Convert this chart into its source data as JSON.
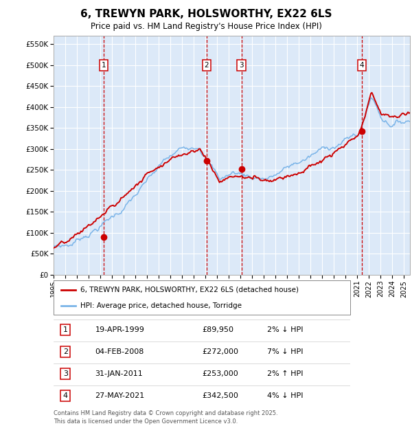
{
  "title": "6, TREWYN PARK, HOLSWORTHY, EX22 6LS",
  "subtitle": "Price paid vs. HM Land Registry's House Price Index (HPI)",
  "legend_line1": "6, TREWYN PARK, HOLSWORTHY, EX22 6LS (detached house)",
  "legend_line2": "HPI: Average price, detached house, Torridge",
  "ylabel_ticks": [
    "£0",
    "£50K",
    "£100K",
    "£150K",
    "£200K",
    "£250K",
    "£300K",
    "£350K",
    "£400K",
    "£450K",
    "£500K",
    "£550K"
  ],
  "ytick_values": [
    0,
    50000,
    100000,
    150000,
    200000,
    250000,
    300000,
    350000,
    400000,
    450000,
    500000,
    550000
  ],
  "xmin": 1995.0,
  "xmax": 2025.5,
  "ymin": 0,
  "ymax": 570000,
  "background_color": "#dce9f8",
  "grid_color": "#ffffff",
  "hpi_line_color": "#7ab4e8",
  "price_line_color": "#cc0000",
  "dashed_line_color": "#cc0000",
  "marker_color": "#cc0000",
  "transactions": [
    {
      "label": "1",
      "date": "1999-04-19",
      "price": 89950,
      "x_year": 1999.29
    },
    {
      "label": "2",
      "date": "2008-02-04",
      "price": 272000,
      "x_year": 2008.09
    },
    {
      "label": "3",
      "date": "2011-01-31",
      "price": 253000,
      "x_year": 2011.08
    },
    {
      "label": "4",
      "date": "2021-05-27",
      "price": 342500,
      "x_year": 2021.4
    }
  ],
  "table_rows": [
    {
      "num": "1",
      "date": "19-APR-1999",
      "price": "£89,950",
      "pct": "2%",
      "dir": "↓",
      "ref": "HPI"
    },
    {
      "num": "2",
      "date": "04-FEB-2008",
      "price": "£272,000",
      "pct": "7%",
      "dir": "↓",
      "ref": "HPI"
    },
    {
      "num": "3",
      "date": "31-JAN-2011",
      "price": "£253,000",
      "pct": "2%",
      "dir": "↑",
      "ref": "HPI"
    },
    {
      "num": "4",
      "date": "27-MAY-2021",
      "price": "£342,500",
      "pct": "4%",
      "dir": "↓",
      "ref": "HPI"
    }
  ],
  "footnote1": "Contains HM Land Registry data © Crown copyright and database right 2025.",
  "footnote2": "This data is licensed under the Open Government Licence v3.0."
}
